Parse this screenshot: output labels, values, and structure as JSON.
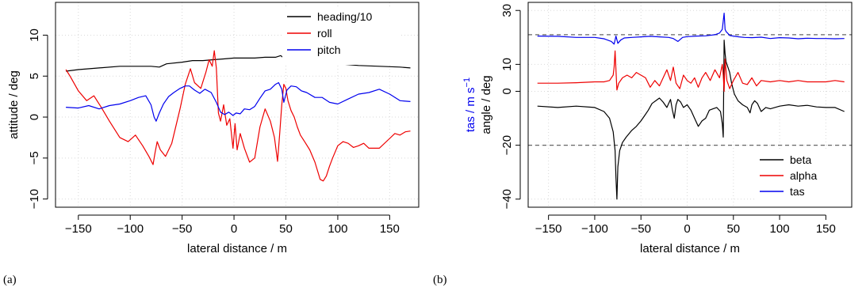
{
  "panels": [
    {
      "label": "(a)",
      "chart_data": {
        "type": "line",
        "title": "",
        "xlabel": "lateral distance / m",
        "ylabel": "attitude / deg",
        "xlim": [
          -172,
          178
        ],
        "ylim": [
          -11,
          14
        ],
        "xticks": [
          -150,
          -100,
          -50,
          0,
          50,
          100,
          150
        ],
        "yticks": [
          -10,
          -5,
          0,
          5,
          10
        ],
        "grid": true,
        "legend": "top-right",
        "series": [
          {
            "name": "heading/10",
            "color": "#000000",
            "x": [
              -162,
              -150,
              -130,
              -110,
              -95,
              -80,
              -72,
              -65,
              -50,
              -40,
              -30,
              -20,
              -10,
              0,
              10,
              20,
              30,
              40,
              45,
              50,
              60,
              80,
              100,
              120,
              140,
              160,
              170
            ],
            "y": [
              5.6,
              5.8,
              6.0,
              6.2,
              6.2,
              6.2,
              6.1,
              6.5,
              6.7,
              6.9,
              6.9,
              7.0,
              7.1,
              7.2,
              7.2,
              7.2,
              7.3,
              7.3,
              7.5,
              7.0,
              6.9,
              6.7,
              6.5,
              6.3,
              6.2,
              6.1,
              6.0
            ]
          },
          {
            "name": "roll",
            "color": "#ee0000",
            "x": [
              -162,
              -158,
              -150,
              -142,
              -135,
              -128,
              -120,
              -110,
              -102,
              -95,
              -88,
              -82,
              -78,
              -76,
              -74,
              -71,
              -66,
              -60,
              -52,
              -47,
              -42,
              -38,
              -32,
              -27,
              -24,
              -21,
              -19,
              -17,
              -15,
              -13,
              -10,
              -7,
              -4,
              -1,
              1,
              3,
              6,
              10,
              15,
              20,
              25,
              30,
              35,
              39,
              42,
              44,
              46,
              48,
              50,
              52,
              55,
              58,
              61,
              64,
              68,
              73,
              78,
              83,
              86,
              89,
              92,
              95,
              100,
              105,
              110,
              115,
              120,
              125,
              130,
              140,
              150,
              155,
              160,
              165,
              170
            ],
            "y": [
              5.8,
              5.0,
              3.2,
              2.0,
              2.6,
              1.2,
              -0.5,
              -2.5,
              -3.0,
              -2.2,
              -3.5,
              -4.8,
              -5.8,
              -4.3,
              -3.0,
              -4.0,
              -4.8,
              -3.2,
              1.0,
              4.0,
              5.9,
              4.2,
              3.5,
              5.5,
              7.0,
              6.2,
              8.1,
              6.0,
              0.5,
              -0.5,
              1.5,
              -1.0,
              -0.2,
              -3.8,
              -0.8,
              -4.0,
              -2.0,
              -3.8,
              -5.5,
              -5.0,
              -1.2,
              1.0,
              -0.5,
              -2.5,
              -5.4,
              -2.0,
              1.5,
              4.0,
              3.5,
              2.0,
              0.8,
              0.0,
              -1.2,
              -2.2,
              -3.0,
              -4.0,
              -5.5,
              -7.6,
              -7.8,
              -7.2,
              -6.0,
              -5.0,
              -3.5,
              -3.0,
              -3.2,
              -3.7,
              -3.5,
              -3.2,
              -3.8,
              -3.8,
              -2.6,
              -2.0,
              -2.2,
              -1.8,
              -1.7
            ]
          },
          {
            "name": "pitch",
            "color": "#0000ee",
            "x": [
              -162,
              -150,
              -140,
              -130,
              -120,
              -110,
              -100,
              -92,
              -85,
              -80,
              -77,
              -75,
              -72,
              -68,
              -63,
              -58,
              -52,
              -47,
              -43,
              -38,
              -33,
              -28,
              -22,
              -17,
              -13,
              -9,
              -5,
              -1,
              2,
              6,
              10,
              15,
              20,
              25,
              30,
              35,
              40,
              43,
              46,
              48,
              51,
              55,
              60,
              65,
              70,
              78,
              85,
              92,
              100,
              110,
              120,
              130,
              140,
              150,
              160,
              170
            ],
            "y": [
              1.2,
              1.1,
              1.4,
              1.0,
              1.4,
              1.6,
              2.0,
              2.4,
              2.6,
              1.5,
              0.0,
              -0.5,
              0.5,
              1.6,
              2.5,
              3.0,
              3.5,
              3.8,
              3.8,
              3.3,
              2.9,
              3.4,
              3.0,
              1.8,
              0.6,
              0.3,
              0.6,
              0.2,
              0.5,
              0.4,
              1.0,
              0.9,
              1.3,
              2.3,
              3.2,
              3.4,
              4.0,
              4.2,
              3.4,
              1.8,
              3.3,
              3.8,
              3.7,
              3.2,
              3.0,
              2.4,
              2.4,
              1.8,
              1.6,
              2.2,
              2.8,
              3.0,
              3.4,
              2.8,
              2.0,
              1.9
            ]
          }
        ]
      }
    },
    {
      "label": "(b)",
      "chart_data": {
        "type": "line",
        "title": "",
        "xlabel": "lateral distance / m",
        "ylabel": "angle / deg",
        "ylabel2": "tas / m s",
        "ylabel2_sup": "−1",
        "xlim": [
          -172,
          178
        ],
        "ylim": [
          -43,
          33
        ],
        "xticks": [
          -150,
          -100,
          -50,
          0,
          50,
          100,
          150
        ],
        "yticks": [
          -40,
          -20,
          0,
          10,
          30
        ],
        "grid": true,
        "legend": "bottom-right",
        "hlines": [
          -20,
          21
        ],
        "series": [
          {
            "name": "beta",
            "color": "#000000",
            "x": [
              -162,
              -140,
              -120,
              -100,
              -90,
              -84,
              -80,
              -78,
              -77,
              -76,
              -75,
              -73,
              -70,
              -66,
              -60,
              -55,
              -50,
              -46,
              -42,
              -38,
              -34,
              -30,
              -26,
              -22,
              -20,
              -18,
              -16,
              -14,
              -12,
              -10,
              -7,
              -4,
              0,
              4,
              8,
              12,
              16,
              20,
              24,
              28,
              32,
              36,
              38,
              39,
              40,
              41,
              42,
              44,
              46,
              48,
              51,
              55,
              60,
              65,
              68,
              70,
              73,
              76,
              80,
              85,
              90,
              100,
              110,
              120,
              130,
              140,
              150,
              160,
              170
            ],
            "y": [
              -5.5,
              -6.0,
              -5.5,
              -6.0,
              -7.5,
              -10.0,
              -15.0,
              -22.0,
              -32.0,
              -40.0,
              -28.0,
              -22.0,
              -19.0,
              -17.0,
              -14.5,
              -13.0,
              -11.0,
              -9.0,
              -7.0,
              -4.5,
              -3.5,
              -2.5,
              -4.0,
              -6.0,
              -4.5,
              -3.0,
              -7.0,
              -10.0,
              -5.0,
              -3.0,
              -4.0,
              -6.0,
              -5.0,
              -7.0,
              -10.0,
              -13.0,
              -11.0,
              -10.0,
              -7.0,
              -6.5,
              -6.0,
              -7.5,
              -12.0,
              -17.0,
              19.0,
              14.0,
              11.0,
              9.0,
              7.0,
              3.0,
              -1.0,
              -3.5,
              -5.0,
              -6.0,
              -8.0,
              -5.0,
              -3.5,
              -4.5,
              -7.5,
              -6.0,
              -6.5,
              -5.5,
              -5.0,
              -5.5,
              -5.2,
              -5.8,
              -6.0,
              -6.0,
              -7.5
            ]
          },
          {
            "name": "alpha",
            "color": "#ee0000",
            "x": [
              -162,
              -140,
              -120,
              -100,
              -90,
              -84,
              -80,
              -79,
              -78,
              -77,
              -76,
              -74,
              -70,
              -65,
              -60,
              -55,
              -50,
              -45,
              -40,
              -35,
              -30,
              -26,
              -22,
              -18,
              -15,
              -12,
              -8,
              -4,
              0,
              4,
              8,
              12,
              16,
              20,
              25,
              30,
              35,
              38,
              39,
              40,
              41,
              43,
              46,
              50,
              55,
              60,
              65,
              70,
              75,
              80,
              90,
              100,
              110,
              120,
              130,
              140,
              150,
              160,
              170
            ],
            "y": [
              3.0,
              3.0,
              3.2,
              3.5,
              3.5,
              4.0,
              6.0,
              9.0,
              15.0,
              8.0,
              0.5,
              3.0,
              5.0,
              6.0,
              5.0,
              7.0,
              6.0,
              5.0,
              1.5,
              4.0,
              2.0,
              5.0,
              8.0,
              4.0,
              9.0,
              3.0,
              1.0,
              6.0,
              4.0,
              3.0,
              5.0,
              1.5,
              5.0,
              7.0,
              4.0,
              8.0,
              5.0,
              10.0,
              6.0,
              0.0,
              12.0,
              4.0,
              1.0,
              4.0,
              7.0,
              3.0,
              2.5,
              5.0,
              2.0,
              4.0,
              3.5,
              4.0,
              3.5,
              4.0,
              3.5,
              3.5,
              3.5,
              4.0,
              3.5
            ]
          },
          {
            "name": "tas",
            "color": "#0000ee",
            "x": [
              -162,
              -140,
              -120,
              -100,
              -90,
              -82,
              -79,
              -77,
              -75,
              -72,
              -68,
              -60,
              -50,
              -40,
              -30,
              -20,
              -15,
              -10,
              -5,
              0,
              10,
              20,
              30,
              35,
              38,
              40,
              41,
              42,
              44,
              46,
              50,
              56,
              62,
              70,
              80,
              90,
              100,
              110,
              120,
              130,
              140,
              150,
              160,
              170
            ],
            "y": [
              20.5,
              20.4,
              20.0,
              20.0,
              19.5,
              18.5,
              17.5,
              20.5,
              17.8,
              19.0,
              19.8,
              20.0,
              20.2,
              20.4,
              20.2,
              20.0,
              19.6,
              18.5,
              20.0,
              20.3,
              20.5,
              20.6,
              21.0,
              21.6,
              23.0,
              29.0,
              23.0,
              22.2,
              21.5,
              20.7,
              20.5,
              20.2,
              20.0,
              19.9,
              20.1,
              19.6,
              19.9,
              19.8,
              19.5,
              19.7,
              19.6,
              19.6,
              19.5,
              19.6
            ]
          }
        ]
      }
    }
  ]
}
